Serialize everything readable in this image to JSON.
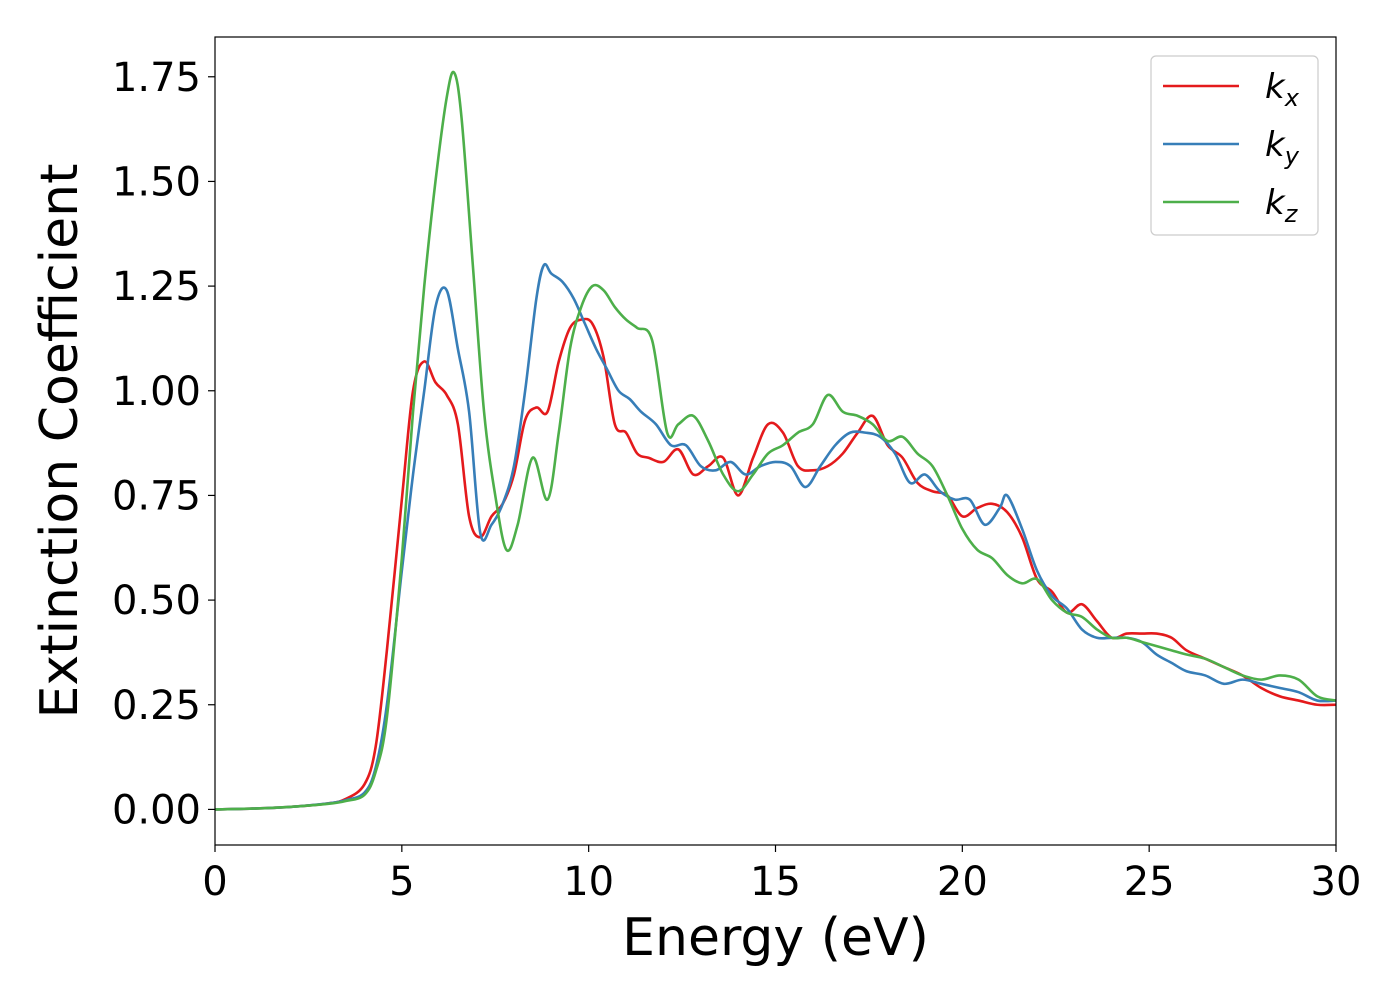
{
  "chart_data": {
    "type": "line",
    "title": "",
    "xlabel": "Energy (eV)",
    "ylabel": "Extinction Coefficient",
    "xlim": [
      0,
      30
    ],
    "ylim": [
      -0.085,
      1.845
    ],
    "xticks": [
      0,
      5,
      10,
      15,
      20,
      25,
      30
    ],
    "xtick_labels": [
      "0",
      "5",
      "10",
      "15",
      "20",
      "25",
      "30"
    ],
    "yticks": [
      0.0,
      0.25,
      0.5,
      0.75,
      1.0,
      1.25,
      1.5,
      1.75
    ],
    "ytick_labels": [
      "0.00",
      "0.25",
      "0.50",
      "0.75",
      "1.00",
      "1.25",
      "1.50",
      "1.75"
    ],
    "grid": false,
    "legend_position": "top-right",
    "series": [
      {
        "name": "k_x",
        "label_base": "k",
        "label_sub": "x",
        "color": "#e41a1c",
        "x": [
          0,
          1,
          2,
          3,
          3.5,
          4,
          4.3,
          4.6,
          5,
          5.3,
          5.6,
          5.9,
          6.2,
          6.5,
          6.8,
          7.1,
          7.4,
          7.7,
          8,
          8.3,
          8.6,
          8.9,
          9.2,
          9.5,
          9.8,
          10.1,
          10.4,
          10.7,
          11,
          11.3,
          11.6,
          12,
          12.4,
          12.8,
          13.2,
          13.6,
          14,
          14.4,
          14.8,
          15.2,
          15.6,
          16,
          16.4,
          16.8,
          17.2,
          17.6,
          18,
          18.4,
          18.8,
          19.2,
          19.6,
          20,
          20.4,
          20.8,
          21.2,
          21.6,
          22,
          22.4,
          22.8,
          23.2,
          23.6,
          24,
          24.4,
          24.8,
          25.2,
          25.6,
          26,
          26.5,
          27,
          27.5,
          28,
          28.5,
          29,
          29.5,
          30
        ],
        "y": [
          0.0,
          0.002,
          0.006,
          0.014,
          0.025,
          0.06,
          0.15,
          0.38,
          0.74,
          1.0,
          1.07,
          1.02,
          0.99,
          0.92,
          0.7,
          0.65,
          0.7,
          0.73,
          0.8,
          0.93,
          0.96,
          0.95,
          1.07,
          1.15,
          1.17,
          1.16,
          1.08,
          0.92,
          0.9,
          0.85,
          0.84,
          0.83,
          0.86,
          0.8,
          0.82,
          0.84,
          0.75,
          0.84,
          0.92,
          0.9,
          0.82,
          0.81,
          0.82,
          0.85,
          0.9,
          0.94,
          0.87,
          0.84,
          0.78,
          0.76,
          0.75,
          0.7,
          0.72,
          0.73,
          0.71,
          0.65,
          0.55,
          0.52,
          0.47,
          0.49,
          0.45,
          0.41,
          0.42,
          0.42,
          0.42,
          0.41,
          0.38,
          0.36,
          0.34,
          0.32,
          0.29,
          0.27,
          0.26,
          0.25,
          0.25
        ]
      },
      {
        "name": "k_y",
        "label_base": "k",
        "label_sub": "y",
        "color": "#377eb8",
        "x": [
          0,
          1,
          2,
          3,
          3.5,
          4,
          4.3,
          4.6,
          5,
          5.3,
          5.6,
          5.9,
          6.2,
          6.5,
          6.8,
          7.1,
          7.4,
          7.7,
          8,
          8.3,
          8.6,
          8.8,
          9,
          9.3,
          9.6,
          9.9,
          10.2,
          10.5,
          10.8,
          11.1,
          11.4,
          11.8,
          12.2,
          12.6,
          13,
          13.4,
          13.8,
          14.2,
          14.6,
          15,
          15.4,
          15.8,
          16.2,
          16.6,
          17,
          17.4,
          17.8,
          18.2,
          18.6,
          19,
          19.4,
          19.8,
          20.2,
          20.6,
          21,
          21.2,
          21.6,
          22,
          22.4,
          22.8,
          23.2,
          23.6,
          24,
          24.4,
          24.8,
          25.2,
          25.6,
          26,
          26.5,
          27,
          27.5,
          28,
          28.5,
          29,
          29.5,
          30
        ],
        "y": [
          0.0,
          0.002,
          0.006,
          0.014,
          0.022,
          0.04,
          0.1,
          0.25,
          0.57,
          0.8,
          1.0,
          1.2,
          1.24,
          1.1,
          0.95,
          0.66,
          0.68,
          0.73,
          0.82,
          1.0,
          1.22,
          1.3,
          1.28,
          1.26,
          1.22,
          1.16,
          1.1,
          1.05,
          1.0,
          0.98,
          0.95,
          0.92,
          0.87,
          0.87,
          0.82,
          0.81,
          0.83,
          0.8,
          0.82,
          0.83,
          0.82,
          0.77,
          0.82,
          0.87,
          0.9,
          0.9,
          0.89,
          0.85,
          0.78,
          0.8,
          0.76,
          0.74,
          0.74,
          0.68,
          0.72,
          0.75,
          0.67,
          0.57,
          0.51,
          0.48,
          0.43,
          0.41,
          0.41,
          0.41,
          0.4,
          0.37,
          0.35,
          0.33,
          0.32,
          0.3,
          0.31,
          0.3,
          0.29,
          0.28,
          0.26,
          0.26
        ]
      },
      {
        "name": "k_z",
        "label_base": "k",
        "label_sub": "z",
        "color": "#4daf4a",
        "x": [
          0,
          1,
          2,
          3,
          3.5,
          4,
          4.3,
          4.6,
          5,
          5.3,
          5.6,
          5.9,
          6.2,
          6.4,
          6.6,
          6.9,
          7.2,
          7.5,
          7.8,
          8.1,
          8.5,
          8.9,
          9.2,
          9.5,
          9.8,
          10.1,
          10.4,
          10.7,
          11,
          11.3,
          11.7,
          12.1,
          12.4,
          12.8,
          13.2,
          13.6,
          14,
          14.4,
          14.8,
          15.2,
          15.6,
          16,
          16.4,
          16.8,
          17.2,
          17.6,
          18,
          18.4,
          18.8,
          19.2,
          19.6,
          20,
          20.4,
          20.8,
          21.2,
          21.6,
          22,
          22.4,
          22.8,
          23.2,
          23.6,
          24,
          24.4,
          24.8,
          25.2,
          25.6,
          26,
          26.5,
          27,
          27.5,
          28,
          28.5,
          29,
          29.5,
          30
        ],
        "y": [
          0.0,
          0.002,
          0.006,
          0.013,
          0.02,
          0.035,
          0.09,
          0.22,
          0.6,
          0.95,
          1.25,
          1.5,
          1.7,
          1.76,
          1.65,
          1.3,
          0.95,
          0.75,
          0.62,
          0.68,
          0.84,
          0.74,
          0.9,
          1.1,
          1.2,
          1.25,
          1.24,
          1.2,
          1.17,
          1.15,
          1.12,
          0.9,
          0.92,
          0.94,
          0.88,
          0.8,
          0.76,
          0.8,
          0.85,
          0.87,
          0.9,
          0.92,
          0.99,
          0.95,
          0.94,
          0.92,
          0.88,
          0.89,
          0.85,
          0.82,
          0.75,
          0.67,
          0.62,
          0.6,
          0.56,
          0.54,
          0.55,
          0.5,
          0.47,
          0.46,
          0.43,
          0.41,
          0.41,
          0.4,
          0.39,
          0.38,
          0.37,
          0.36,
          0.34,
          0.32,
          0.31,
          0.32,
          0.31,
          0.27,
          0.26
        ]
      }
    ]
  }
}
